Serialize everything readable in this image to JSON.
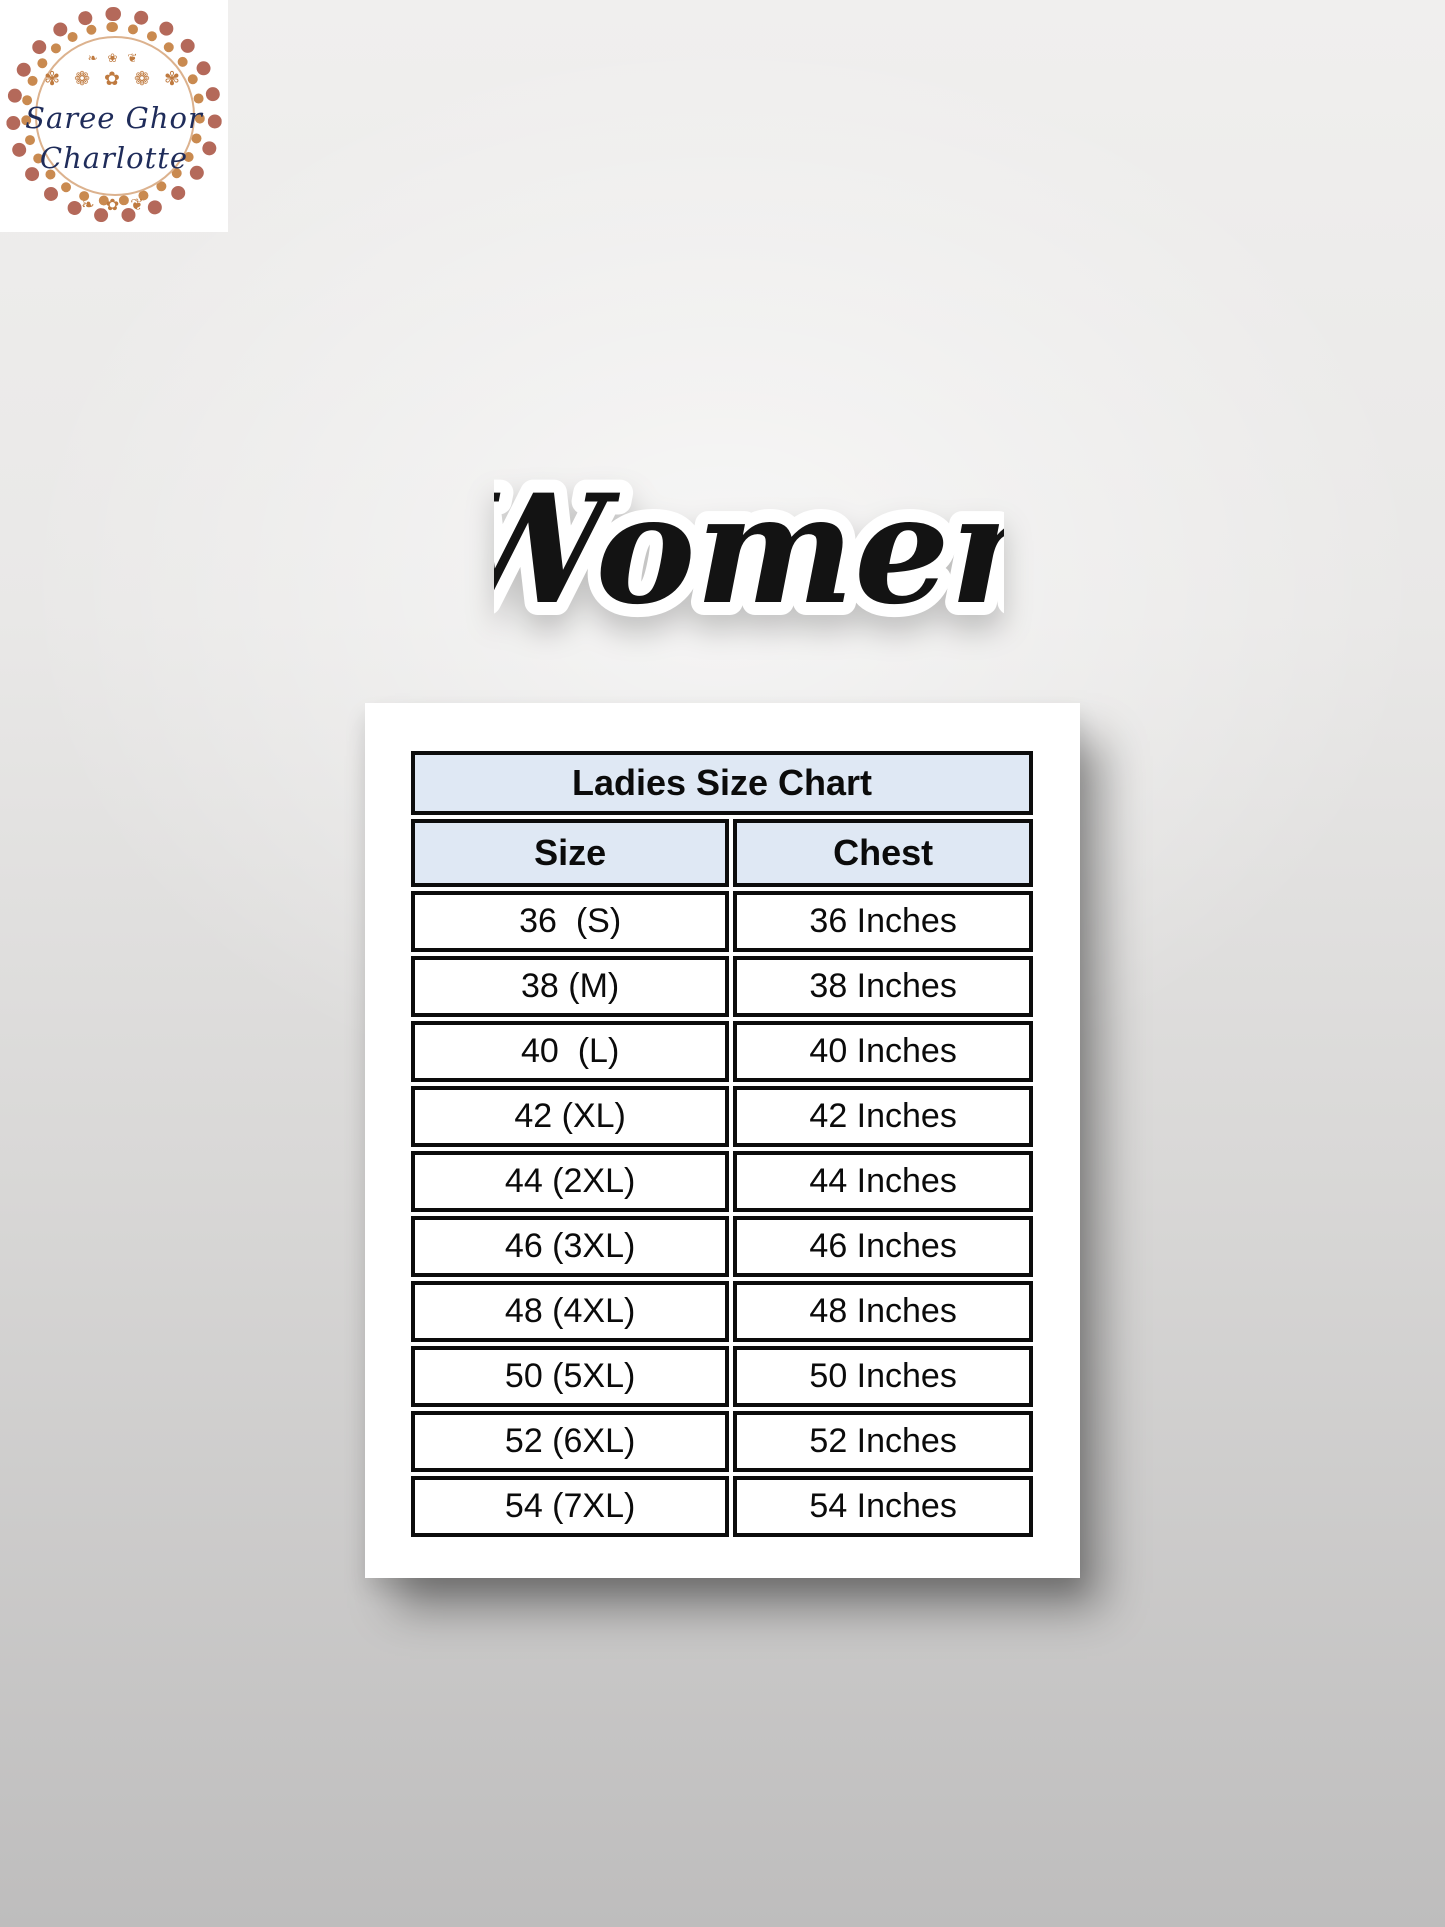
{
  "logo": {
    "line1": "Saree Ghor",
    "line2": "Charlotte",
    "ornament_top_small": "❧ ❀ ❦",
    "ornament_top_large": "✾ ❁ ✿ ❁ ✾",
    "ornament_bottom": "❧ ✿ ❦"
  },
  "title": "Women",
  "chart_data": {
    "type": "table",
    "title": "Ladies Size Chart",
    "columns": [
      "Size",
      "Chest"
    ],
    "rows": [
      [
        "36  (S)",
        "36 Inches"
      ],
      [
        "38 (M)",
        "38 Inches"
      ],
      [
        "40  (L)",
        "40 Inches"
      ],
      [
        "42 (XL)",
        "42 Inches"
      ],
      [
        "44 (2XL)",
        "44 Inches"
      ],
      [
        "46 (3XL)",
        "46 Inches"
      ],
      [
        "48 (4XL)",
        "48 Inches"
      ],
      [
        "50 (5XL)",
        "50 Inches"
      ],
      [
        "52 (6XL)",
        "52 Inches"
      ],
      [
        "54 (7XL)",
        "54 Inches"
      ]
    ]
  },
  "colors": {
    "header_bg": "#dfe8f4",
    "table_border": "#0c0c0c",
    "logo_text": "#1f2c5a",
    "ornament": "#bf7a3f",
    "lace_outer": "#a8503e",
    "lace_inner": "#c98a50",
    "sticker_fill": "#131313",
    "sticker_outline": "#ffffff"
  }
}
